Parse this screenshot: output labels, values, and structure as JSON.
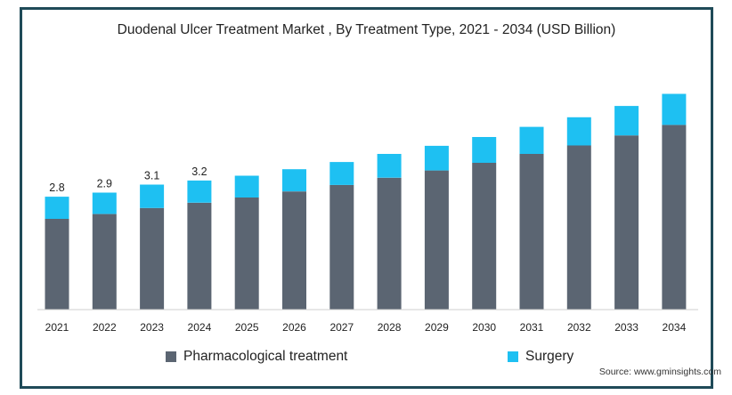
{
  "chart_data": {
    "type": "bar",
    "stacked": true,
    "title": "Duodenal Ulcer Treatment Market , By Treatment Type, 2021 - 2034 (USD Billion)",
    "categories": [
      "2021",
      "2022",
      "2023",
      "2024",
      "2025",
      "2026",
      "2027",
      "2028",
      "2029",
      "2030",
      "2031",
      "2032",
      "2033",
      "2034"
    ],
    "series": [
      {
        "name": "Pharmacological treatment",
        "color": "#5b6572",
        "values": [
          2.25,
          2.37,
          2.52,
          2.65,
          2.78,
          2.93,
          3.09,
          3.27,
          3.45,
          3.64,
          3.86,
          4.07,
          4.32,
          4.58
        ]
      },
      {
        "name": "Surgery",
        "color": "#1ec0f2",
        "values": [
          0.55,
          0.53,
          0.58,
          0.55,
          0.54,
          0.55,
          0.57,
          0.59,
          0.61,
          0.64,
          0.67,
          0.7,
          0.73,
          0.77
        ]
      }
    ],
    "data_labels": [
      "2.8",
      "2.9",
      "3.1",
      "3.2",
      "",
      "",
      "",
      "",
      "",
      "",
      "",
      "",
      "",
      ""
    ],
    "ylim": [
      0,
      6.0
    ],
    "grid": false,
    "legend_position": "bottom"
  },
  "source_text": "Source: www.gminsights.com"
}
